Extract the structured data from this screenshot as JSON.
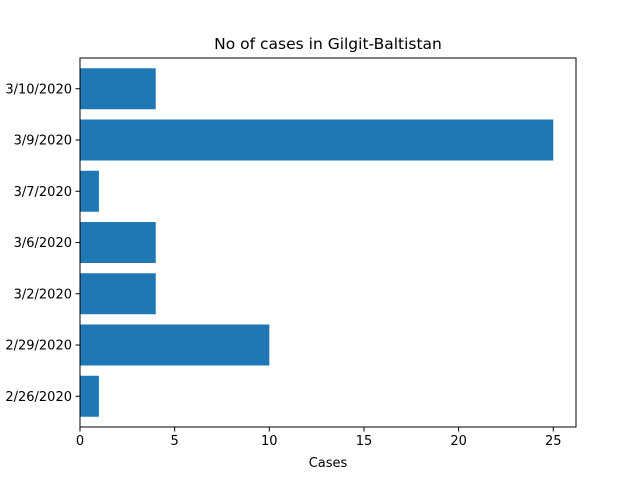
{
  "chart_data": {
    "type": "bar",
    "orientation": "horizontal",
    "title": "No of cases in Gilgit-Baltistan",
    "xlabel": "Cases",
    "ylabel": "",
    "categories": [
      "2/26/2020",
      "2/29/2020",
      "3/2/2020",
      "3/6/2020",
      "3/7/2020",
      "3/9/2020",
      "3/10/2020"
    ],
    "values": [
      1,
      10,
      4,
      4,
      1,
      25,
      4
    ],
    "xlim": [
      0,
      26.2
    ],
    "xticks": [
      0,
      5,
      10,
      15,
      20,
      25
    ],
    "grid": false,
    "legend": "none",
    "bar_color": "#1f77b4"
  }
}
